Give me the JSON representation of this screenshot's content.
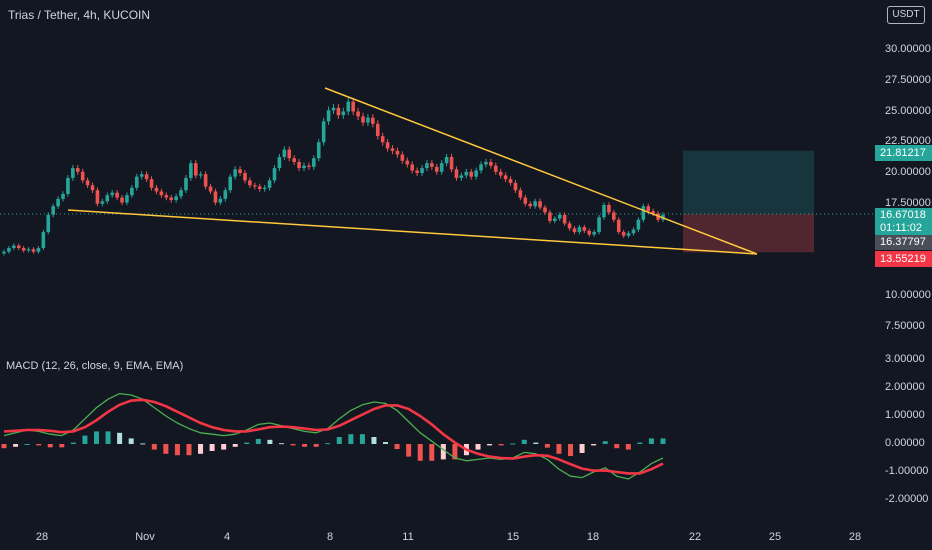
{
  "header": {
    "title": "Trias / Tether, 4h, KUCOIN",
    "currency": "USDT"
  },
  "macd_title": "MACD (12, 26, close, 9, EMA, EMA)",
  "price_badges": {
    "target": "21.81217",
    "current": "16.67018",
    "countdown": "01:11:02",
    "last": "16.37797",
    "stop": "13.55219"
  },
  "colors": {
    "up": "#26a69a",
    "down": "#ef5350",
    "trendline": "#ffc83d",
    "macd_line": "#4caf50",
    "signal_line": "#f23645",
    "hist_light": "#ffffff"
  },
  "y_ticks": [
    "30.00000",
    "27.50000",
    "25.00000",
    "22.50000",
    "20.00000",
    "17.50000",
    "15.00000",
    "12.50000",
    "10.00000",
    "7.50000"
  ],
  "macd_ticks": [
    "3.00000",
    "2.00000",
    "1.00000",
    "0.00000",
    "-1.00000",
    "-2.00000"
  ],
  "x_ticks": [
    "28",
    "Nov",
    "4",
    "8",
    "11",
    "15",
    "18",
    "22",
    "25",
    "28"
  ],
  "chart_data": {
    "type": "candlestick",
    "title": "Trias / Tether, 4h, KUCOIN",
    "x_axis": [
      "28",
      "Nov",
      "4",
      "8",
      "11",
      "15",
      "18",
      "22",
      "25",
      "28"
    ],
    "y_range": [
      7.5,
      30.0
    ],
    "y_scale": "log",
    "closes": [
      13.6,
      13.9,
      14.1,
      13.9,
      13.7,
      13.8,
      13.6,
      13.9,
      15.2,
      16.6,
      17.3,
      17.9,
      18.3,
      19.6,
      20.4,
      20.1,
      19.4,
      19.0,
      18.6,
      17.5,
      17.7,
      18.2,
      18.4,
      18.0,
      17.6,
      18.2,
      18.8,
      19.7,
      19.9,
      19.5,
      18.8,
      18.5,
      18.2,
      18.0,
      17.8,
      18.1,
      18.6,
      19.6,
      20.8,
      19.8,
      19.9,
      18.9,
      18.5,
      17.6,
      17.9,
      18.6,
      19.7,
      20.3,
      20.0,
      19.4,
      19.0,
      18.9,
      18.7,
      18.8,
      19.4,
      20.4,
      21.3,
      21.9,
      21.2,
      20.9,
      20.4,
      20.6,
      20.5,
      21.2,
      22.5,
      24.2,
      25.1,
      25.3,
      24.7,
      25.0,
      25.8,
      25.0,
      24.6,
      24.1,
      24.5,
      24.0,
      23.0,
      22.5,
      22.0,
      21.8,
      21.5,
      21.0,
      20.7,
      20.2,
      20.0,
      20.4,
      20.8,
      20.5,
      20.1,
      20.8,
      21.3,
      20.3,
      19.6,
      19.8,
      20.1,
      19.7,
      20.2,
      20.7,
      20.9,
      20.6,
      20.1,
      19.8,
      19.5,
      19.2,
      18.6,
      18.0,
      17.5,
      17.3,
      17.7,
      17.2,
      16.8,
      16.1,
      16.3,
      16.6,
      15.9,
      15.5,
      15.2,
      15.6,
      15.3,
      15.0,
      15.2,
      16.4,
      17.4,
      16.8,
      16.2,
      15.2,
      14.9,
      15.1,
      15.4,
      16.2,
      17.3,
      16.9,
      16.7,
      16.2,
      16.6
    ],
    "trendlines": [
      {
        "name": "upper",
        "from": [
          8,
          27.0
        ],
        "to": [
          24,
          13.55
        ]
      },
      {
        "name": "lower",
        "from": [
          29.5,
          16.9
        ],
        "to": [
          24,
          13.55
        ]
      }
    ],
    "position": {
      "entry": 16.67018,
      "target": 21.81217,
      "stop": 13.55219
    },
    "macd": {
      "range": [
        -2.0,
        3.0
      ],
      "macd_line": [
        0.3,
        0.4,
        0.5,
        0.45,
        0.35,
        0.3,
        0.5,
        0.9,
        1.3,
        1.6,
        1.8,
        1.75,
        1.6,
        1.3,
        1.0,
        0.75,
        0.55,
        0.4,
        0.35,
        0.3,
        0.35,
        0.5,
        0.7,
        0.75,
        0.65,
        0.55,
        0.45,
        0.4,
        0.55,
        0.9,
        1.2,
        1.4,
        1.5,
        1.45,
        1.2,
        0.8,
        0.4,
        0.1,
        -0.2,
        -0.5,
        -0.6,
        -0.55,
        -0.5,
        -0.55,
        -0.5,
        -0.3,
        -0.35,
        -0.55,
        -0.9,
        -1.15,
        -1.2,
        -1.0,
        -0.85,
        -1.15,
        -1.25,
        -1.0,
        -0.7,
        -0.5
      ],
      "signal_line": [
        0.45,
        0.47,
        0.5,
        0.5,
        0.47,
        0.42,
        0.45,
        0.6,
        0.85,
        1.15,
        1.4,
        1.55,
        1.58,
        1.5,
        1.35,
        1.15,
        0.95,
        0.75,
        0.6,
        0.5,
        0.45,
        0.45,
        0.52,
        0.6,
        0.62,
        0.6,
        0.55,
        0.5,
        0.52,
        0.65,
        0.85,
        1.05,
        1.25,
        1.38,
        1.38,
        1.25,
        1.0,
        0.7,
        0.35,
        0.05,
        -0.2,
        -0.35,
        -0.45,
        -0.5,
        -0.52,
        -0.45,
        -0.4,
        -0.42,
        -0.55,
        -0.72,
        -0.88,
        -0.95,
        -0.95,
        -1.0,
        -1.05,
        -1.05,
        -0.9,
        -0.7
      ],
      "histogram": [
        -0.15,
        -0.1,
        0.0,
        -0.05,
        -0.12,
        -0.12,
        0.05,
        0.3,
        0.45,
        0.45,
        0.4,
        0.2,
        0.02,
        -0.2,
        -0.35,
        -0.4,
        -0.4,
        -0.35,
        -0.25,
        -0.2,
        -0.1,
        0.05,
        0.18,
        0.15,
        0.03,
        -0.05,
        -0.1,
        -0.1,
        0.03,
        0.25,
        0.35,
        0.35,
        0.25,
        0.07,
        -0.18,
        -0.45,
        -0.6,
        -0.6,
        -0.55,
        -0.55,
        -0.4,
        -0.2,
        -0.05,
        -0.05,
        0.02,
        0.15,
        0.05,
        -0.13,
        -0.35,
        -0.43,
        -0.32,
        -0.05,
        0.1,
        -0.15,
        -0.2,
        0.05,
        0.2,
        0.2
      ]
    }
  }
}
